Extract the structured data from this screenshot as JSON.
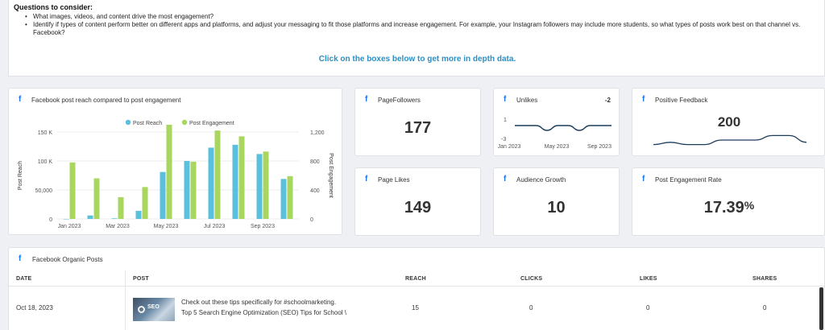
{
  "questions": {
    "title": "Questions to consider:",
    "items": [
      "What images, videos, and content drive the most engagement?",
      "Identify if types of content perform better on different apps and platforms, and adjust your messaging to fit those platforms and increase engagement. For example, your Instagram followers may include more students, so what types of posts work best on that channel vs. Facebook?"
    ],
    "cta": "Click on the boxes below to get more in depth data."
  },
  "fb_glyph": "f",
  "chart_card": {
    "title": "Facebook post reach compared to post engagement"
  },
  "chart_data": {
    "type": "bar",
    "categories": [
      "Jan 2023",
      "Feb 2023",
      "Mar 2023",
      "Apr 2023",
      "May 2023",
      "Jun 2023",
      "Jul 2023",
      "Aug 2023",
      "Sep 2023",
      "Oct 2023"
    ],
    "x_tick_labels": [
      "Jan 2023",
      "Mar 2023",
      "May 2023",
      "Jul 2023",
      "Sep 2023"
    ],
    "series": [
      {
        "name": "Post Reach",
        "axis": "left",
        "color": "#5bc0de",
        "values": [
          0,
          6000,
          1000,
          14000,
          81000,
          100000,
          123000,
          128000,
          112000,
          69000
        ]
      },
      {
        "name": "Post Engagement",
        "axis": "right",
        "color": "#a8d65e",
        "values": [
          780,
          560,
          300,
          440,
          1300,
          790,
          1220,
          1140,
          930,
          590
        ]
      }
    ],
    "ylabel": "Post Reach",
    "y2label": "Post Engagement",
    "ylim": [
      0,
      150000
    ],
    "y2lim": [
      0,
      1200
    ],
    "y_ticks": [
      "0",
      "50,000",
      "100 K",
      "150 K"
    ],
    "y2_ticks": [
      "0",
      "400",
      "800",
      "1,200"
    ],
    "legend_position": "top"
  },
  "metrics": {
    "page_followers": {
      "title": "PageFollowers",
      "value": "177"
    },
    "unlikes": {
      "title": "Unlikes",
      "value": "-2",
      "y_ticks": [
        "1",
        "-3"
      ],
      "x_ticks": [
        "Jan 2023",
        "May 2023",
        "Sep 2023"
      ],
      "trend": [
        0,
        0,
        0,
        -1.2,
        0,
        0,
        -1.2,
        0,
        0,
        0
      ]
    },
    "positive_feedback": {
      "title": "Positive Feedback",
      "value": "200",
      "trend": [
        3,
        4,
        3,
        3,
        5,
        5,
        5,
        7,
        7,
        4
      ]
    },
    "page_likes": {
      "title": "Page Likes",
      "value": "149"
    },
    "audience_growth": {
      "title": "Audience Growth",
      "value": "10"
    },
    "engagement_rate": {
      "title": "Post Engagement Rate",
      "value": "17.39",
      "unit": "%"
    }
  },
  "posts_table": {
    "title": "Facebook Organic Posts",
    "headers": {
      "date": "DATE",
      "post": "POST",
      "reach": "REACH",
      "clicks": "CLICKS",
      "likes": "LIKES",
      "shares": "SHARES"
    },
    "rows": [
      {
        "date": "Oct 18, 2023",
        "post_line1": "Check out these tips specifically for #schoolmarketing.",
        "post_line2": "Top 5 Search Engine Optimization (SEO) Tips for School \\",
        "thumb_text": "SEO",
        "reach": "15",
        "clicks": "0",
        "likes": "0",
        "shares": "0"
      }
    ]
  }
}
